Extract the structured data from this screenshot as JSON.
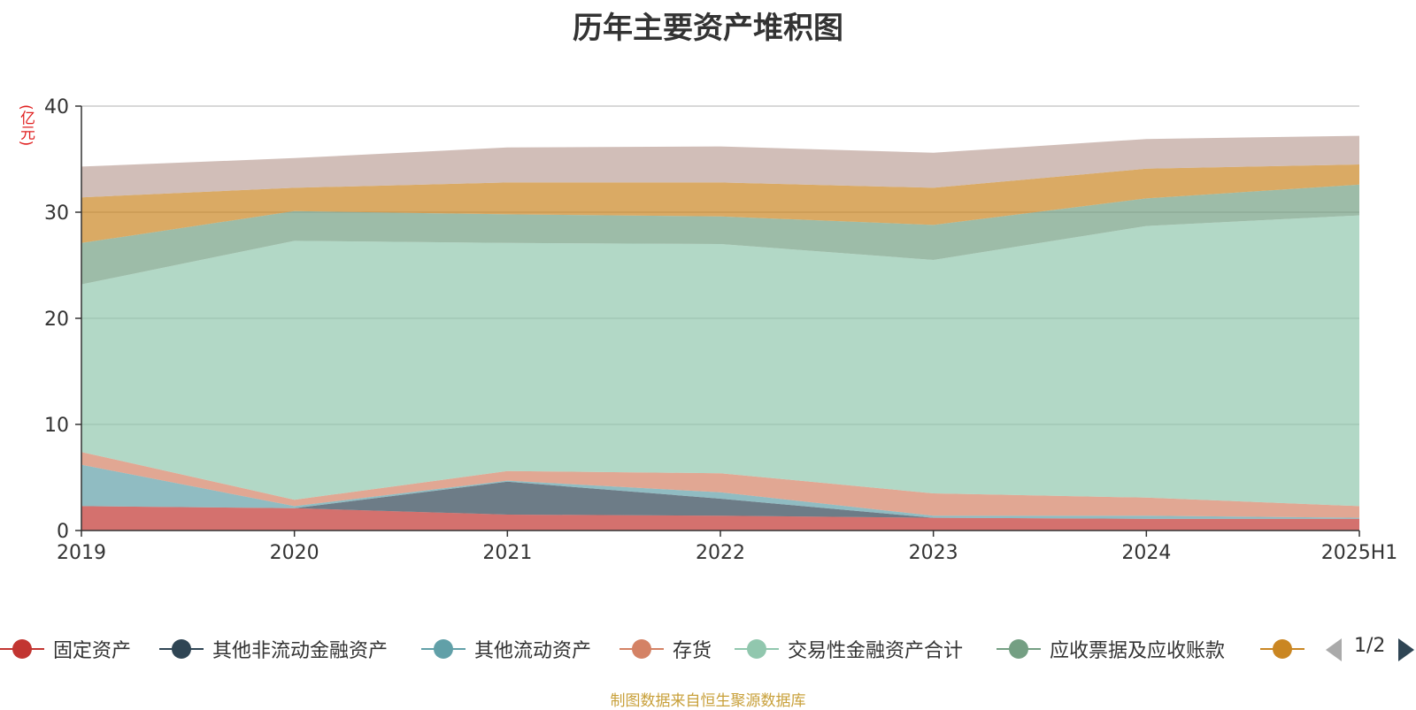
{
  "chart_data": {
    "type": "area",
    "stacked": true,
    "title": "历年主要资产堆积图",
    "ylabel": "亿元",
    "ylabel_display": "(亿元)",
    "categories": [
      "2019",
      "2020",
      "2021",
      "2022",
      "2023",
      "2024",
      "2025H1"
    ],
    "ylim": [
      0,
      40
    ],
    "yticks": [
      0,
      10,
      20,
      30,
      40
    ],
    "grid": true,
    "legend_position": "bottom",
    "series": [
      {
        "name": "固定资产",
        "color": "#c23531",
        "values": [
          2.3,
          2.1,
          1.5,
          1.4,
          1.2,
          1.1,
          1.1
        ]
      },
      {
        "name": "其他非流动金融资产",
        "color": "#2f4554",
        "values": [
          0.0,
          0.0,
          3.1,
          1.6,
          0.0,
          0.0,
          0.0
        ]
      },
      {
        "name": "其他流动资产",
        "color": "#61a0a8",
        "values": [
          3.9,
          0.2,
          0.1,
          0.6,
          0.2,
          0.3,
          0.1
        ]
      },
      {
        "name": "存货",
        "color": "#d48265",
        "values": [
          1.2,
          0.6,
          0.9,
          1.8,
          2.1,
          1.7,
          1.1
        ]
      },
      {
        "name": "交易性金融资产合计",
        "color": "#91c7ae",
        "values": [
          15.8,
          24.4,
          21.5,
          21.6,
          22.0,
          25.6,
          27.4
        ]
      },
      {
        "name": "应收票据及应收账款",
        "color": "#749f83",
        "values": [
          3.9,
          2.8,
          2.7,
          2.6,
          3.3,
          2.6,
          2.9
        ]
      },
      {
        "name": "",
        "color": "#ca8622",
        "values": [
          4.3,
          2.2,
          3.0,
          3.2,
          3.5,
          2.8,
          1.9
        ]
      },
      {
        "name": "",
        "color": "#bda29a",
        "values": [
          2.9,
          2.8,
          3.3,
          3.4,
          3.3,
          2.8,
          2.7
        ]
      }
    ]
  },
  "legend": {
    "visible_count": 7,
    "page": "1/2"
  },
  "source_note": "制图数据来自恒生聚源数据库"
}
